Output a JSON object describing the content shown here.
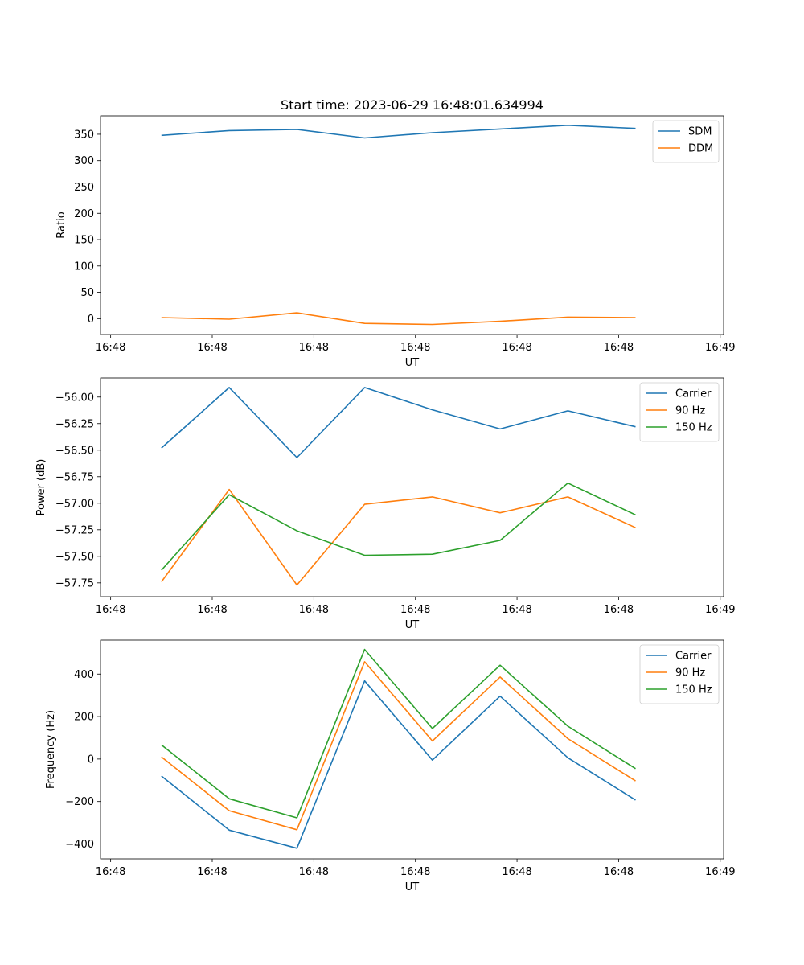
{
  "chart_data": [
    {
      "type": "line",
      "title": "Start time: 2023-06-29 16:48:01.634994",
      "xlabel": "UT",
      "ylabel": "Ratio",
      "x_tick_labels": [
        "16:48",
        "16:48",
        "16:48",
        "16:48",
        "16:48",
        "16:48",
        "16:49"
      ],
      "ylim": [
        -30,
        385
      ],
      "yticks": [
        "0",
        "50",
        "100",
        "150",
        "200",
        "250",
        "300",
        "350"
      ],
      "legend": "top-right",
      "grid": false,
      "series": [
        {
          "name": "SDM",
          "color": "#1f77b4",
          "values": [
            348,
            357,
            359,
            343,
            353,
            360,
            367,
            361
          ]
        },
        {
          "name": "DDM",
          "color": "#ff7f0e",
          "values": [
            2,
            -1,
            11,
            -9,
            -11,
            -5,
            3,
            2
          ]
        }
      ]
    },
    {
      "type": "line",
      "title": "",
      "xlabel": "UT",
      "ylabel": "Power (dB)",
      "x_tick_labels": [
        "16:48",
        "16:48",
        "16:48",
        "16:48",
        "16:48",
        "16:48",
        "16:49"
      ],
      "ylim": [
        -57.88,
        -55.82
      ],
      "yticks": [
        "−57.75",
        "−57.50",
        "−57.25",
        "−57.00",
        "−56.75",
        "−56.50",
        "−56.25",
        "−56.00"
      ],
      "legend": "top-right",
      "grid": false,
      "series": [
        {
          "name": "Carrier",
          "color": "#1f77b4",
          "values": [
            -56.48,
            -55.91,
            -56.57,
            -55.91,
            -56.12,
            -56.3,
            -56.13,
            -56.28
          ]
        },
        {
          "name": "90 Hz",
          "color": "#ff7f0e",
          "values": [
            -57.74,
            -56.87,
            -57.77,
            -57.01,
            -56.94,
            -57.09,
            -56.94,
            -57.23
          ]
        },
        {
          "name": "150 Hz",
          "color": "#2ca02c",
          "values": [
            -57.63,
            -56.92,
            -57.26,
            -57.49,
            -57.48,
            -57.35,
            -56.81,
            -57.11
          ]
        }
      ]
    },
    {
      "type": "line",
      "title": "",
      "xlabel": "UT",
      "ylabel": "Frequency (Hz)",
      "x_tick_labels": [
        "16:48",
        "16:48",
        "16:48",
        "16:48",
        "16:48",
        "16:48",
        "16:49"
      ],
      "ylim": [
        -470,
        560
      ],
      "yticks": [
        "−400",
        "−200",
        "0",
        "200",
        "400"
      ],
      "legend": "top-right",
      "grid": false,
      "series": [
        {
          "name": "Carrier",
          "color": "#1f77b4",
          "values": [
            -80,
            -335,
            -420,
            368,
            -5,
            296,
            6,
            -193
          ]
        },
        {
          "name": "90 Hz",
          "color": "#ff7f0e",
          "values": [
            10,
            -243,
            -333,
            458,
            85,
            386,
            96,
            -103
          ]
        },
        {
          "name": "150 Hz",
          "color": "#2ca02c",
          "values": [
            67,
            -187,
            -277,
            516,
            144,
            442,
            155,
            -45
          ]
        }
      ]
    }
  ]
}
